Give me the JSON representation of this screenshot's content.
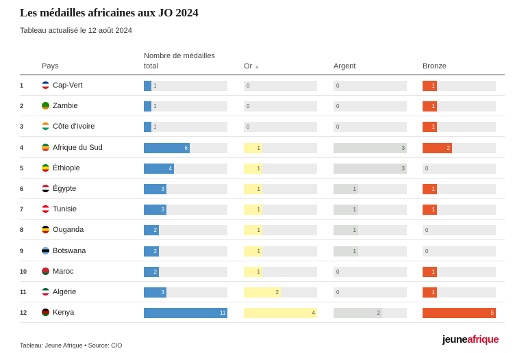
{
  "title": "Les médailles africaines aux JO 2024",
  "subtitle": "Tableau actualisé le 12 août 2024",
  "columns": {
    "pays": "Pays",
    "total_line1": "Nombre de médailles",
    "total_line2": "total",
    "or": "Or",
    "argent": "Argent",
    "bronze": "Bronze"
  },
  "colors": {
    "total": "#4a8fc7",
    "or": "#fff6a8",
    "argent": "#dcdedc",
    "bronze": "#e8572a",
    "track": "#ebebeb"
  },
  "chart_data": {
    "type": "table",
    "max_values": {
      "total": 11,
      "or": 4,
      "argent": 3,
      "bronze": 5
    },
    "rows": [
      {
        "rank": "1",
        "country": "Cap-Vert",
        "total": 1,
        "or": 0,
        "argent": 0,
        "bronze": 1
      },
      {
        "rank": "2",
        "country": "Zambie",
        "total": 1,
        "or": 0,
        "argent": 0,
        "bronze": 1
      },
      {
        "rank": "3",
        "country": "Côte d'Ivoire",
        "total": 1,
        "or": 0,
        "argent": 0,
        "bronze": 1
      },
      {
        "rank": "4",
        "country": "Afrique du Sud",
        "total": 6,
        "or": 1,
        "argent": 3,
        "bronze": 2
      },
      {
        "rank": "5",
        "country": "Éthiopie",
        "total": 4,
        "or": 1,
        "argent": 3,
        "bronze": 0
      },
      {
        "rank": "6",
        "country": "Égypte",
        "total": 3,
        "or": 1,
        "argent": 1,
        "bronze": 1
      },
      {
        "rank": "7",
        "country": "Tunisie",
        "total": 3,
        "or": 1,
        "argent": 1,
        "bronze": 1
      },
      {
        "rank": "8",
        "country": "Ouganda",
        "total": 2,
        "or": 1,
        "argent": 1,
        "bronze": 0
      },
      {
        "rank": "9",
        "country": "Botswana",
        "total": 2,
        "or": 1,
        "argent": 1,
        "bronze": 0
      },
      {
        "rank": "10",
        "country": "Maroc",
        "total": 2,
        "or": 1,
        "argent": 0,
        "bronze": 1
      },
      {
        "rank": "11",
        "country": "Algérie",
        "total": 3,
        "or": 2,
        "argent": 0,
        "bronze": 1
      },
      {
        "rank": "12",
        "country": "Kenya",
        "total": 11,
        "or": 4,
        "argent": 2,
        "bronze": 5
      }
    ]
  },
  "flags": [
    {
      "icon": "cape-verde-flag-icon",
      "colors": [
        "#003893",
        "#ffffff",
        "#cf2027"
      ]
    },
    {
      "icon": "zambia-flag-icon",
      "colors": [
        "#198a00",
        "#198a00",
        "#ef7d00"
      ]
    },
    {
      "icon": "ivory-coast-flag-icon",
      "colors": [
        "#f77f00",
        "#ffffff",
        "#009e60"
      ]
    },
    {
      "icon": "south-africa-flag-icon",
      "colors": [
        "#007a4d",
        "#ffb612",
        "#de3831"
      ]
    },
    {
      "icon": "ethiopia-flag-icon",
      "colors": [
        "#078930",
        "#fcdd09",
        "#da121a"
      ]
    },
    {
      "icon": "egypt-flag-icon",
      "colors": [
        "#ce1126",
        "#ffffff",
        "#000000"
      ]
    },
    {
      "icon": "tunisia-flag-icon",
      "colors": [
        "#e70013",
        "#ffffff",
        "#e70013"
      ]
    },
    {
      "icon": "uganda-flag-icon",
      "colors": [
        "#000000",
        "#fcdc04",
        "#d90000"
      ]
    },
    {
      "icon": "botswana-flag-icon",
      "colors": [
        "#75aadb",
        "#000000",
        "#75aadb"
      ]
    },
    {
      "icon": "morocco-flag-icon",
      "colors": [
        "#c1272d",
        "#c1272d",
        "#006233"
      ]
    },
    {
      "icon": "algeria-flag-icon",
      "colors": [
        "#006233",
        "#ffffff",
        "#d21034"
      ]
    },
    {
      "icon": "kenya-flag-icon",
      "colors": [
        "#000000",
        "#bb0000",
        "#006600"
      ]
    }
  ],
  "footer": {
    "source": "Tableau: Jeune Afrique • Source: CIO",
    "logo_part1": "jeune",
    "logo_part2": "afrique"
  }
}
